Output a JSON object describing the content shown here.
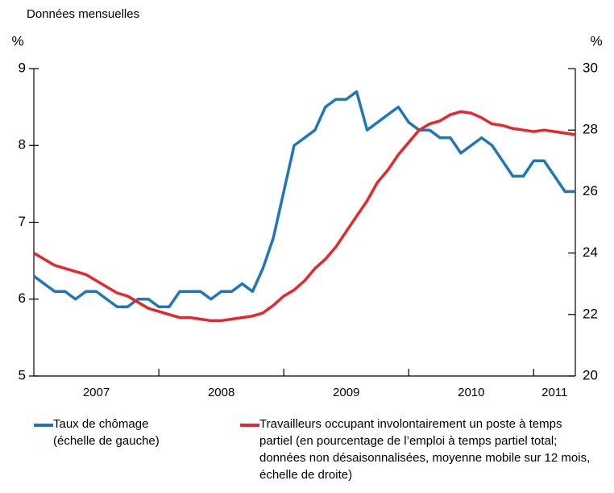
{
  "chart_data": {
    "type": "line",
    "subtitle": "Données mensuelles",
    "y_unit": "%",
    "y2_unit": "%",
    "x": [
      2007,
      2007.083,
      2007.167,
      2007.25,
      2007.333,
      2007.417,
      2007.5,
      2007.583,
      2007.667,
      2007.75,
      2007.833,
      2007.917,
      2008,
      2008.083,
      2008.167,
      2008.25,
      2008.333,
      2008.417,
      2008.5,
      2008.583,
      2008.667,
      2008.75,
      2008.833,
      2008.917,
      2009,
      2009.083,
      2009.167,
      2009.25,
      2009.333,
      2009.417,
      2009.5,
      2009.583,
      2009.667,
      2009.75,
      2009.833,
      2009.917,
      2010,
      2010.083,
      2010.167,
      2010.25,
      2010.333,
      2010.417,
      2010.5,
      2010.583,
      2010.667,
      2010.75,
      2010.833,
      2010.917,
      2011,
      2011.083,
      2011.167,
      2011.25,
      2011.333
    ],
    "xlim": [
      2007,
      2011.333
    ],
    "xticks": [
      {
        "value": 2007.5,
        "label": "2007"
      },
      {
        "value": 2008.5,
        "label": "2008"
      },
      {
        "value": 2009.5,
        "label": "2009"
      },
      {
        "value": 2010.5,
        "label": "2010"
      },
      {
        "value": 2011.167,
        "label": "2011"
      }
    ],
    "xtick_marks": [
      2008,
      2009,
      2010,
      2011
    ],
    "ylim": [
      5,
      9
    ],
    "yticks": [
      5,
      6,
      7,
      8,
      9
    ],
    "y2lim": [
      20,
      30
    ],
    "y2ticks": [
      20,
      22,
      24,
      26,
      28,
      30
    ],
    "series": [
      {
        "name": "Taux de chômage (échelle de gauche)",
        "color": "#1f77b9",
        "axis": "y",
        "values": [
          6.3,
          6.2,
          6.1,
          6.1,
          6.0,
          6.1,
          6.1,
          6.0,
          5.9,
          5.9,
          6.0,
          6.0,
          5.9,
          5.9,
          6.1,
          6.1,
          6.1,
          6.0,
          6.1,
          6.1,
          6.2,
          6.1,
          6.4,
          6.8,
          7.4,
          8.0,
          8.1,
          8.2,
          8.5,
          8.6,
          8.6,
          8.7,
          8.2,
          8.3,
          8.4,
          8.5,
          8.3,
          8.2,
          8.2,
          8.1,
          8.1,
          7.9,
          8.0,
          8.1,
          8.0,
          7.8,
          7.6,
          7.6,
          7.8,
          7.8,
          7.6,
          7.4,
          7.4
        ]
      },
      {
        "name": "Travailleurs occupant involontairement un poste à temps partiel (en pourcentage de l’emploi à temps partiel total; données non désaisonnalisées, moyenne mobile sur 12 mois, échelle de droite)",
        "color": "#e8262b",
        "axis": "y2",
        "values": [
          24.0,
          23.8,
          23.6,
          23.5,
          23.4,
          23.3,
          23.1,
          22.9,
          22.7,
          22.6,
          22.4,
          22.2,
          22.1,
          22.0,
          21.9,
          21.9,
          21.85,
          21.8,
          21.8,
          21.85,
          21.9,
          21.95,
          22.05,
          22.3,
          22.6,
          22.8,
          23.1,
          23.5,
          23.8,
          24.2,
          24.7,
          25.2,
          25.7,
          26.3,
          26.7,
          27.2,
          27.6,
          28.0,
          28.2,
          28.3,
          28.5,
          28.6,
          28.55,
          28.4,
          28.2,
          28.15,
          28.05,
          28.0,
          27.95,
          28.0,
          27.95,
          27.9,
          27.85
        ]
      }
    ]
  }
}
